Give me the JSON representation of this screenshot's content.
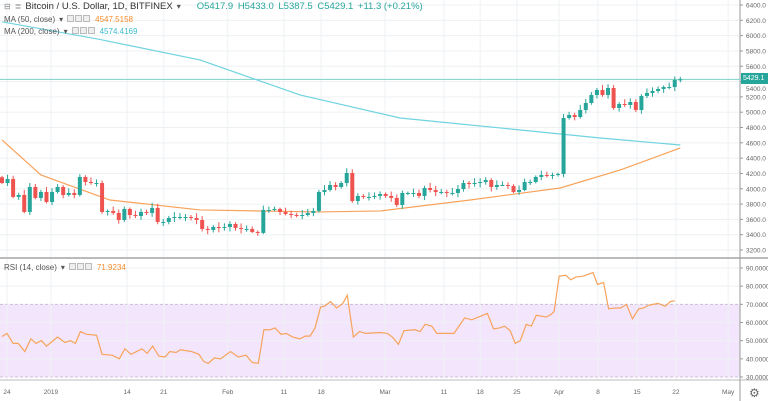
{
  "header": {
    "collapse_icon": "⊟",
    "symbol_icon": "≣",
    "title": "Bitcoin / U.S. Dollar, 1D, BITFINEX",
    "open": "O5417.9",
    "high": "H5433.0",
    "low": "L5387.5",
    "close": "C5429.1",
    "change": "+11.3 (+0.21%)"
  },
  "indicators": {
    "ma50": {
      "label": "MA (50, close)",
      "value": "4547.5158",
      "color": "#f7a35c"
    },
    "ma200": {
      "label": "MA (200, close)",
      "value": "4574.4169",
      "color": "#6fd3e0"
    },
    "rsi": {
      "label": "RSI (14, close)",
      "value": "71.9234",
      "color": "#f7a35c"
    }
  },
  "last_price_label": "5429.1",
  "colors": {
    "up": "#26a69a",
    "down": "#ef5350",
    "rsi_band": "#f3e6fc"
  },
  "chart_data": {
    "type": "candlestick",
    "price_axis": {
      "ylim": [
        3200,
        6400
      ],
      "ticks": [
        "6400.0",
        "6200.0",
        "6000.0",
        "5800.0",
        "5600.0",
        "5400.0",
        "5200.0",
        "5000.0",
        "4800.0",
        "4600.0",
        "4400.0",
        "4200.0",
        "4000.0",
        "3800.0",
        "3600.0",
        "3400.0",
        "3200.0"
      ]
    },
    "rsi_axis": {
      "ylim": [
        30,
        90
      ],
      "ticks": [
        "90.0000",
        "80.0000",
        "70.0000",
        "60.0000",
        "50.0000",
        "40.0000",
        "30.0000"
      ],
      "band": [
        30,
        70
      ]
    },
    "time_axis": [
      [
        "24",
        0.9
      ],
      [
        "2019",
        8.8
      ],
      [
        "14",
        22.5
      ],
      [
        "21",
        29.1
      ],
      [
        "Feb",
        40.6
      ],
      [
        "11",
        50.7
      ],
      [
        "18",
        57.4
      ],
      [
        "Mar",
        68.9
      ],
      [
        "11",
        79.5
      ],
      [
        "18",
        86
      ],
      [
        "25",
        92.6
      ],
      [
        "Apr",
        100.2
      ],
      [
        "8",
        107.2
      ],
      [
        "15",
        114.2
      ],
      [
        "22",
        121.2
      ],
      [
        "May",
        130.6
      ]
    ],
    "first_open": 4150,
    "closes": [
      4075,
      4128,
      3893,
      3919,
      3697,
      4023,
      3880,
      3958,
      3827,
      3958,
      4023,
      3919,
      3945,
      3919,
      4154,
      4088,
      4075,
      4075,
      3697,
      3710,
      3684,
      3592,
      3736,
      3657,
      3644,
      3697,
      3684,
      3749,
      3566,
      3566,
      3618,
      3631,
      3631,
      3631,
      3618,
      3592,
      3475,
      3462,
      3501,
      3488,
      3501,
      3540,
      3488,
      3475,
      3475,
      3436,
      3423,
      3723,
      3723,
      3736,
      3697,
      3671,
      3657,
      3644,
      3657,
      3684,
      3710,
      3958,
      3984,
      4049,
      4023,
      4075,
      4206,
      3840,
      3906,
      3893,
      3893,
      3906,
      3932,
      3906,
      3880,
      3788,
      3945,
      3945,
      3945,
      3906,
      4010,
      3984,
      3958,
      3958,
      3945,
      3945,
      3997,
      4075,
      4062,
      4075,
      4088,
      4114,
      4023,
      4049,
      4049,
      4036,
      3958,
      3984,
      4088,
      4088,
      4154,
      4180,
      4167,
      4180,
      4193,
      4924,
      4963,
      4937,
      5029,
      5120,
      5225,
      5290,
      5225,
      5316,
      5055,
      5107,
      5094,
      5133,
      5029,
      5212,
      5251,
      5277,
      5303,
      5329,
      5329,
      5421,
      5429
    ],
    "ma50": [
      [
        0,
        4637
      ],
      [
        7,
        4180
      ],
      [
        19.4,
        3853
      ],
      [
        35.6,
        3723
      ],
      [
        57.2,
        3697
      ],
      [
        68,
        3710
      ],
      [
        84.2,
        3853
      ],
      [
        100.4,
        4010
      ],
      [
        111.2,
        4245
      ],
      [
        122,
        4533
      ]
    ],
    "ma200": [
      [
        0,
        6180
      ],
      [
        17.6,
        5950
      ],
      [
        35.6,
        5682
      ],
      [
        53.6,
        5225
      ],
      [
        71.6,
        4924
      ],
      [
        89.6,
        4794
      ],
      [
        107.6,
        4663
      ],
      [
        122,
        4571
      ]
    ],
    "rsi": [
      [
        0,
        52.3
      ],
      [
        0.9,
        54
      ],
      [
        2,
        48.5
      ],
      [
        2.9,
        48.5
      ],
      [
        4.1,
        44
      ],
      [
        5.2,
        51
      ],
      [
        6.1,
        48.5
      ],
      [
        7.1,
        50
      ],
      [
        8,
        47
      ],
      [
        10,
        52
      ],
      [
        11.3,
        49
      ],
      [
        12.3,
        50
      ],
      [
        13.2,
        48.5
      ],
      [
        14.1,
        55
      ],
      [
        15.2,
        53.5
      ],
      [
        17,
        53
      ],
      [
        18,
        42.5
      ],
      [
        19.8,
        42
      ],
      [
        21.1,
        40
      ],
      [
        22.1,
        45.5
      ],
      [
        23.2,
        42.5
      ],
      [
        25.2,
        45.5
      ],
      [
        26.1,
        43
      ],
      [
        27.1,
        47
      ],
      [
        28.2,
        41.5
      ],
      [
        29.3,
        41
      ],
      [
        30.2,
        44
      ],
      [
        31.3,
        43.5
      ],
      [
        32.1,
        45
      ],
      [
        34.1,
        44
      ],
      [
        35.4,
        42.5
      ],
      [
        36.3,
        38.5
      ],
      [
        37.1,
        37.5
      ],
      [
        38.2,
        40.5
      ],
      [
        39.3,
        40
      ],
      [
        41.1,
        44
      ],
      [
        42.5,
        41
      ],
      [
        43.9,
        42
      ],
      [
        45,
        38
      ],
      [
        46.1,
        37.5
      ],
      [
        47.1,
        56
      ],
      [
        48.2,
        56
      ],
      [
        49.1,
        57
      ],
      [
        50.2,
        53.5
      ],
      [
        51.1,
        54
      ],
      [
        52.3,
        52
      ],
      [
        53.6,
        51
      ],
      [
        54.5,
        52.5
      ],
      [
        55.4,
        52.5
      ],
      [
        56.3,
        57
      ],
      [
        57.3,
        68.5
      ],
      [
        58,
        69
      ],
      [
        59.1,
        71.5
      ],
      [
        60.2,
        68
      ],
      [
        61.3,
        70.5
      ],
      [
        62.1,
        75
      ],
      [
        63.2,
        52
      ],
      [
        64.3,
        55
      ],
      [
        65.4,
        54
      ],
      [
        68,
        54.5
      ],
      [
        69.3,
        54
      ],
      [
        70.2,
        52
      ],
      [
        71.3,
        48
      ],
      [
        72.3,
        55.5
      ],
      [
        74.3,
        56
      ],
      [
        75.2,
        55
      ],
      [
        76.1,
        59
      ],
      [
        77.3,
        58
      ],
      [
        78.2,
        54
      ],
      [
        81.3,
        54
      ],
      [
        83.2,
        62.5
      ],
      [
        84.5,
        61.5
      ],
      [
        87.3,
        65
      ],
      [
        88.4,
        56.5
      ],
      [
        89.5,
        57
      ],
      [
        90.4,
        58
      ],
      [
        91.4,
        55.5
      ],
      [
        92.3,
        48.5
      ],
      [
        93.2,
        50
      ],
      [
        94.3,
        59
      ],
      [
        95.2,
        58
      ],
      [
        96.1,
        64
      ],
      [
        97.9,
        63
      ],
      [
        98.8,
        64.5
      ],
      [
        99.3,
        66
      ],
      [
        100.2,
        85.5
      ],
      [
        101.4,
        86
      ],
      [
        102.3,
        83.5
      ],
      [
        103.2,
        85
      ],
      [
        104.5,
        85.5
      ],
      [
        106.3,
        87.5
      ],
      [
        107.1,
        81
      ],
      [
        108.2,
        82
      ],
      [
        109.1,
        67.5
      ],
      [
        110.4,
        68
      ],
      [
        111.3,
        68
      ],
      [
        112.3,
        70
      ],
      [
        113.4,
        62
      ],
      [
        114.5,
        67.5
      ],
      [
        115.4,
        68
      ],
      [
        116.3,
        69.5
      ],
      [
        118,
        70.5
      ],
      [
        119.3,
        69
      ],
      [
        120.2,
        71.5
      ],
      [
        121,
        72
      ]
    ]
  }
}
